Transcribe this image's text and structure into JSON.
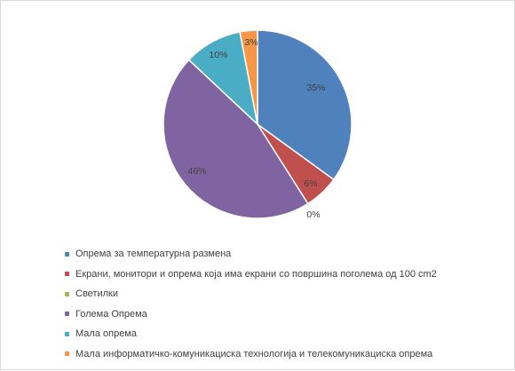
{
  "chart_data": {
    "type": "pie",
    "start_angle_deg": 0,
    "direction": "clockwise",
    "border_color": "#ffffff",
    "slices": [
      {
        "name": "Опрема за температурна размена",
        "value": 35,
        "label": "35%",
        "color": "#4F81BD"
      },
      {
        "name": "Екрани, монитори и опрема која има екрани со површина поголема од 100 cm2",
        "value": 6,
        "label": "6%",
        "color": "#C0504D"
      },
      {
        "name": "Светилки",
        "value": 0,
        "label": "0%",
        "color": "#9BBB59"
      },
      {
        "name": "Голема Опрема",
        "value": 46,
        "label": "46%",
        "color": "#8064A2"
      },
      {
        "name": "Мала опрема",
        "value": 10,
        "label": "10%",
        "color": "#4BACC6"
      },
      {
        "name": "Мала информатичко-комуникациска технологија и телекомуникациска опрема",
        "value": 3,
        "label": "3%",
        "color": "#F79646"
      }
    ],
    "legend_position": "bottom"
  }
}
